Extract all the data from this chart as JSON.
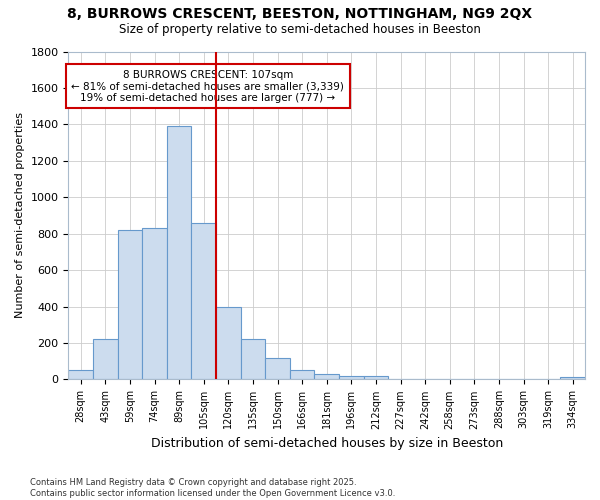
{
  "title_line1": "8, BURROWS CRESCENT, BEESTON, NOTTINGHAM, NG9 2QX",
  "title_line2": "Size of property relative to semi-detached houses in Beeston",
  "xlabel": "Distribution of semi-detached houses by size in Beeston",
  "ylabel": "Number of semi-detached properties",
  "categories": [
    "28sqm",
    "43sqm",
    "59sqm",
    "74sqm",
    "89sqm",
    "105sqm",
    "120sqm",
    "135sqm",
    "150sqm",
    "166sqm",
    "181sqm",
    "196sqm",
    "212sqm",
    "227sqm",
    "242sqm",
    "258sqm",
    "273sqm",
    "288sqm",
    "303sqm",
    "319sqm",
    "334sqm"
  ],
  "values": [
    50,
    220,
    820,
    830,
    1390,
    860,
    400,
    220,
    115,
    50,
    30,
    20,
    20,
    0,
    0,
    0,
    0,
    0,
    0,
    0,
    15
  ],
  "bar_color": "#ccdcee",
  "bar_edge_color": "#6699cc",
  "vline_color": "#cc0000",
  "annotation_title": "8 BURROWS CRESCENT: 107sqm",
  "annotation_line1": "← 81% of semi-detached houses are smaller (3,339)",
  "annotation_line2": "19% of semi-detached houses are larger (777) →",
  "annotation_box_color": "#cc0000",
  "ylim": [
    0,
    1800
  ],
  "yticks": [
    0,
    200,
    400,
    600,
    800,
    1000,
    1200,
    1400,
    1600,
    1800
  ],
  "footer_line1": "Contains HM Land Registry data © Crown copyright and database right 2025.",
  "footer_line2": "Contains public sector information licensed under the Open Government Licence v3.0.",
  "bg_color": "#ffffff",
  "plot_bg_color": "#ffffff",
  "grid_color": "#cccccc"
}
